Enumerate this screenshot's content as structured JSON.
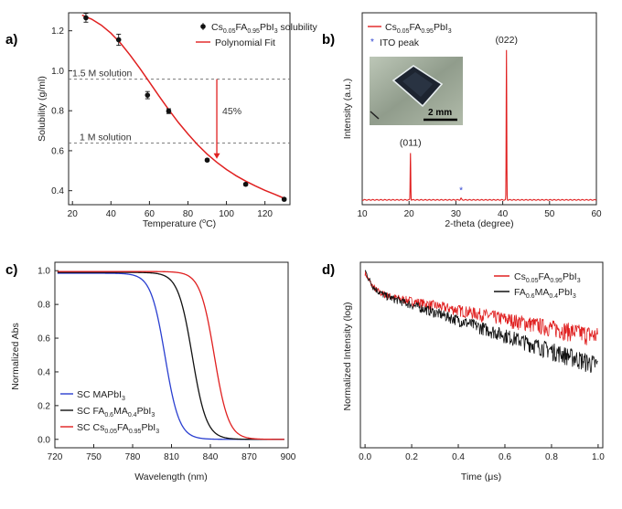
{
  "chart_data": [
    {
      "id": "a",
      "type": "scatter",
      "panel_label": "a)",
      "xlabel": "Temperature (",
      "xlabel_sup": "o",
      "xlabel_end": "C)",
      "ylabel": "Solubility (g/ml)",
      "xlim": [
        18,
        133
      ],
      "ylim": [
        0.33,
        1.29
      ],
      "xticks": [
        "20",
        "40",
        "60",
        "80",
        "100",
        "120"
      ],
      "yticks": [
        "0.4",
        "0.6",
        "0.8",
        "1.0",
        "1.2"
      ],
      "series": [
        {
          "name_pre": "Cs",
          "name_sub1": "0.05",
          "name_mid": "FA",
          "name_sub2": "0.95",
          "name_post": "PbI",
          "name_sub3": "3",
          "name_tail": " solubility",
          "kind": "points",
          "x": [
            27,
            44,
            59,
            70,
            90,
            110,
            130
          ],
          "y": [
            1.265,
            1.155,
            0.878,
            0.798,
            0.553,
            0.432,
            0.357
          ],
          "err": [
            0.022,
            0.028,
            0.018,
            0.012,
            0.006,
            0.006,
            0.005
          ],
          "color": "#111111"
        },
        {
          "name": "Polynomial Fit",
          "kind": "line",
          "x": [
            25,
            30,
            35,
            40,
            45,
            50,
            55,
            60,
            65,
            70,
            75,
            80,
            85,
            90,
            95,
            100,
            105,
            110,
            115,
            120,
            125,
            130
          ],
          "y": [
            1.278,
            1.258,
            1.228,
            1.188,
            1.138,
            1.078,
            1.012,
            0.943,
            0.873,
            0.806,
            0.742,
            0.684,
            0.63,
            0.583,
            0.542,
            0.506,
            0.475,
            0.448,
            0.424,
            0.402,
            0.382,
            0.362
          ],
          "color": "#e02020"
        }
      ],
      "annotations": {
        "line1_label": "1.5 M solution",
        "line1_y": 0.958,
        "line2_label": "1 M solution",
        "line2_y": 0.638,
        "arrow_x": 95,
        "percent_label": "45%"
      }
    },
    {
      "id": "b",
      "type": "line",
      "panel_label": "b)",
      "xlabel": "2-theta (degree)",
      "ylabel": "Intensity (a.u.)",
      "xlim": [
        10,
        60
      ],
      "xticks": [
        "10",
        "20",
        "30",
        "40",
        "50",
        "60"
      ],
      "series": [
        {
          "name_pre": "Cs",
          "name_sub1": "0.05",
          "name_mid": "FA",
          "name_sub2": "0.95",
          "name_post": "PbI",
          "name_sub3": "3",
          "color": "#e02020",
          "peaks": [
            {
              "x": 20.3,
              "height": 0.245
            },
            {
              "x": 40.8,
              "height": 0.78
            }
          ],
          "baseline": 0.025
        }
      ],
      "ito_label": "ITO peak",
      "ito_x": 31.1,
      "peak_labels": [
        {
          "text": "(011)",
          "x": 20.3
        },
        {
          "text": "(022)",
          "x": 40.8
        }
      ],
      "scale_label": "2 mm"
    },
    {
      "id": "c",
      "type": "line",
      "panel_label": "c)",
      "xlabel": "Wavelength (nm)",
      "ylabel": "Normalized Abs",
      "xlim": [
        720,
        900
      ],
      "ylim": [
        -0.05,
        1.05
      ],
      "xticks": [
        "720",
        "750",
        "780",
        "810",
        "840",
        "870",
        "900"
      ],
      "yticks": [
        "0.0",
        "0.2",
        "0.4",
        "0.6",
        "0.8",
        "1.0"
      ],
      "series": [
        {
          "name_pre": "SC MAPbI",
          "name_sub1": "3",
          "color": "#2a3fd0",
          "center": 805,
          "width": 5.5,
          "top": 0.985
        },
        {
          "name_pre": "SC FA",
          "name_sub1": "0.6",
          "name_mid": "MA",
          "name_sub2": "0.4",
          "name_post": "PbI",
          "name_sub3": "3",
          "color": "#111111",
          "center": 826,
          "width": 5.5,
          "top": 0.99
        },
        {
          "name_pre": "SC Cs",
          "name_sub1": "0.05",
          "name_mid": "FA",
          "name_sub2": "0.95",
          "name_post": "PbI",
          "name_sub3": "3",
          "color": "#e02020",
          "center": 843,
          "width": 5.5,
          "top": 0.995
        }
      ]
    },
    {
      "id": "d",
      "type": "line",
      "panel_label": "d)",
      "xlabel": "Time (μs)",
      "ylabel": "Normalized Intensity (log)",
      "xlim": [
        -0.02,
        1.02
      ],
      "xticks": [
        "0.0",
        "0.2",
        "0.4",
        "0.6",
        "0.8",
        "1.0"
      ],
      "series": [
        {
          "name_pre": "Cs",
          "name_sub1": "0.05",
          "name_mid": "FA",
          "name_sub2": "0.95",
          "name_post": "PbI",
          "name_sub3": "3",
          "color": "#e02020",
          "tau_fast": 0.025,
          "tau_slow": 0.55,
          "floor": 0.11
        },
        {
          "name_pre": "FA",
          "name_sub1": "0.6",
          "name_mid": "MA",
          "name_sub2": "0.4",
          "name_post": "PbI",
          "name_sub3": "3",
          "color": "#111111",
          "tau_fast": 0.022,
          "tau_slow": 0.33,
          "floor": 0.01
        }
      ]
    }
  ]
}
